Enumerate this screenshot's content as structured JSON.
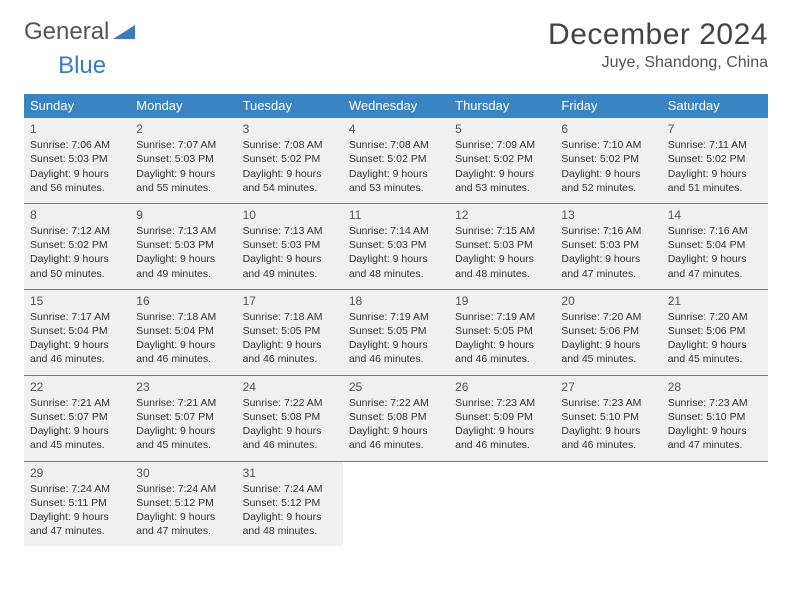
{
  "logo": {
    "word1": "General",
    "word2": "Blue"
  },
  "title": "December 2024",
  "location": "Juye, Shandong, China",
  "colors": {
    "header_bg": "#3b84c4",
    "header_text": "#ffffff",
    "cell_bg": "#f0f0f0",
    "divider": "#3b84c4",
    "logo_gray": "#555555",
    "logo_blue": "#3b7bbf"
  },
  "day_headers": [
    "Sunday",
    "Monday",
    "Tuesday",
    "Wednesday",
    "Thursday",
    "Friday",
    "Saturday"
  ],
  "weeks": [
    [
      {
        "n": "1",
        "sr": "Sunrise: 7:06 AM",
        "ss": "Sunset: 5:03 PM",
        "dl": "Daylight: 9 hours and 56 minutes."
      },
      {
        "n": "2",
        "sr": "Sunrise: 7:07 AM",
        "ss": "Sunset: 5:03 PM",
        "dl": "Daylight: 9 hours and 55 minutes."
      },
      {
        "n": "3",
        "sr": "Sunrise: 7:08 AM",
        "ss": "Sunset: 5:02 PM",
        "dl": "Daylight: 9 hours and 54 minutes."
      },
      {
        "n": "4",
        "sr": "Sunrise: 7:08 AM",
        "ss": "Sunset: 5:02 PM",
        "dl": "Daylight: 9 hours and 53 minutes."
      },
      {
        "n": "5",
        "sr": "Sunrise: 7:09 AM",
        "ss": "Sunset: 5:02 PM",
        "dl": "Daylight: 9 hours and 53 minutes."
      },
      {
        "n": "6",
        "sr": "Sunrise: 7:10 AM",
        "ss": "Sunset: 5:02 PM",
        "dl": "Daylight: 9 hours and 52 minutes."
      },
      {
        "n": "7",
        "sr": "Sunrise: 7:11 AM",
        "ss": "Sunset: 5:02 PM",
        "dl": "Daylight: 9 hours and 51 minutes."
      }
    ],
    [
      {
        "n": "8",
        "sr": "Sunrise: 7:12 AM",
        "ss": "Sunset: 5:02 PM",
        "dl": "Daylight: 9 hours and 50 minutes."
      },
      {
        "n": "9",
        "sr": "Sunrise: 7:13 AM",
        "ss": "Sunset: 5:03 PM",
        "dl": "Daylight: 9 hours and 49 minutes."
      },
      {
        "n": "10",
        "sr": "Sunrise: 7:13 AM",
        "ss": "Sunset: 5:03 PM",
        "dl": "Daylight: 9 hours and 49 minutes."
      },
      {
        "n": "11",
        "sr": "Sunrise: 7:14 AM",
        "ss": "Sunset: 5:03 PM",
        "dl": "Daylight: 9 hours and 48 minutes."
      },
      {
        "n": "12",
        "sr": "Sunrise: 7:15 AM",
        "ss": "Sunset: 5:03 PM",
        "dl": "Daylight: 9 hours and 48 minutes."
      },
      {
        "n": "13",
        "sr": "Sunrise: 7:16 AM",
        "ss": "Sunset: 5:03 PM",
        "dl": "Daylight: 9 hours and 47 minutes."
      },
      {
        "n": "14",
        "sr": "Sunrise: 7:16 AM",
        "ss": "Sunset: 5:04 PM",
        "dl": "Daylight: 9 hours and 47 minutes."
      }
    ],
    [
      {
        "n": "15",
        "sr": "Sunrise: 7:17 AM",
        "ss": "Sunset: 5:04 PM",
        "dl": "Daylight: 9 hours and 46 minutes."
      },
      {
        "n": "16",
        "sr": "Sunrise: 7:18 AM",
        "ss": "Sunset: 5:04 PM",
        "dl": "Daylight: 9 hours and 46 minutes."
      },
      {
        "n": "17",
        "sr": "Sunrise: 7:18 AM",
        "ss": "Sunset: 5:05 PM",
        "dl": "Daylight: 9 hours and 46 minutes."
      },
      {
        "n": "18",
        "sr": "Sunrise: 7:19 AM",
        "ss": "Sunset: 5:05 PM",
        "dl": "Daylight: 9 hours and 46 minutes."
      },
      {
        "n": "19",
        "sr": "Sunrise: 7:19 AM",
        "ss": "Sunset: 5:05 PM",
        "dl": "Daylight: 9 hours and 46 minutes."
      },
      {
        "n": "20",
        "sr": "Sunrise: 7:20 AM",
        "ss": "Sunset: 5:06 PM",
        "dl": "Daylight: 9 hours and 45 minutes."
      },
      {
        "n": "21",
        "sr": "Sunrise: 7:20 AM",
        "ss": "Sunset: 5:06 PM",
        "dl": "Daylight: 9 hours and 45 minutes."
      }
    ],
    [
      {
        "n": "22",
        "sr": "Sunrise: 7:21 AM",
        "ss": "Sunset: 5:07 PM",
        "dl": "Daylight: 9 hours and 45 minutes."
      },
      {
        "n": "23",
        "sr": "Sunrise: 7:21 AM",
        "ss": "Sunset: 5:07 PM",
        "dl": "Daylight: 9 hours and 45 minutes."
      },
      {
        "n": "24",
        "sr": "Sunrise: 7:22 AM",
        "ss": "Sunset: 5:08 PM",
        "dl": "Daylight: 9 hours and 46 minutes."
      },
      {
        "n": "25",
        "sr": "Sunrise: 7:22 AM",
        "ss": "Sunset: 5:08 PM",
        "dl": "Daylight: 9 hours and 46 minutes."
      },
      {
        "n": "26",
        "sr": "Sunrise: 7:23 AM",
        "ss": "Sunset: 5:09 PM",
        "dl": "Daylight: 9 hours and 46 minutes."
      },
      {
        "n": "27",
        "sr": "Sunrise: 7:23 AM",
        "ss": "Sunset: 5:10 PM",
        "dl": "Daylight: 9 hours and 46 minutes."
      },
      {
        "n": "28",
        "sr": "Sunrise: 7:23 AM",
        "ss": "Sunset: 5:10 PM",
        "dl": "Daylight: 9 hours and 47 minutes."
      }
    ],
    [
      {
        "n": "29",
        "sr": "Sunrise: 7:24 AM",
        "ss": "Sunset: 5:11 PM",
        "dl": "Daylight: 9 hours and 47 minutes."
      },
      {
        "n": "30",
        "sr": "Sunrise: 7:24 AM",
        "ss": "Sunset: 5:12 PM",
        "dl": "Daylight: 9 hours and 47 minutes."
      },
      {
        "n": "31",
        "sr": "Sunrise: 7:24 AM",
        "ss": "Sunset: 5:12 PM",
        "dl": "Daylight: 9 hours and 48 minutes."
      },
      null,
      null,
      null,
      null
    ]
  ]
}
